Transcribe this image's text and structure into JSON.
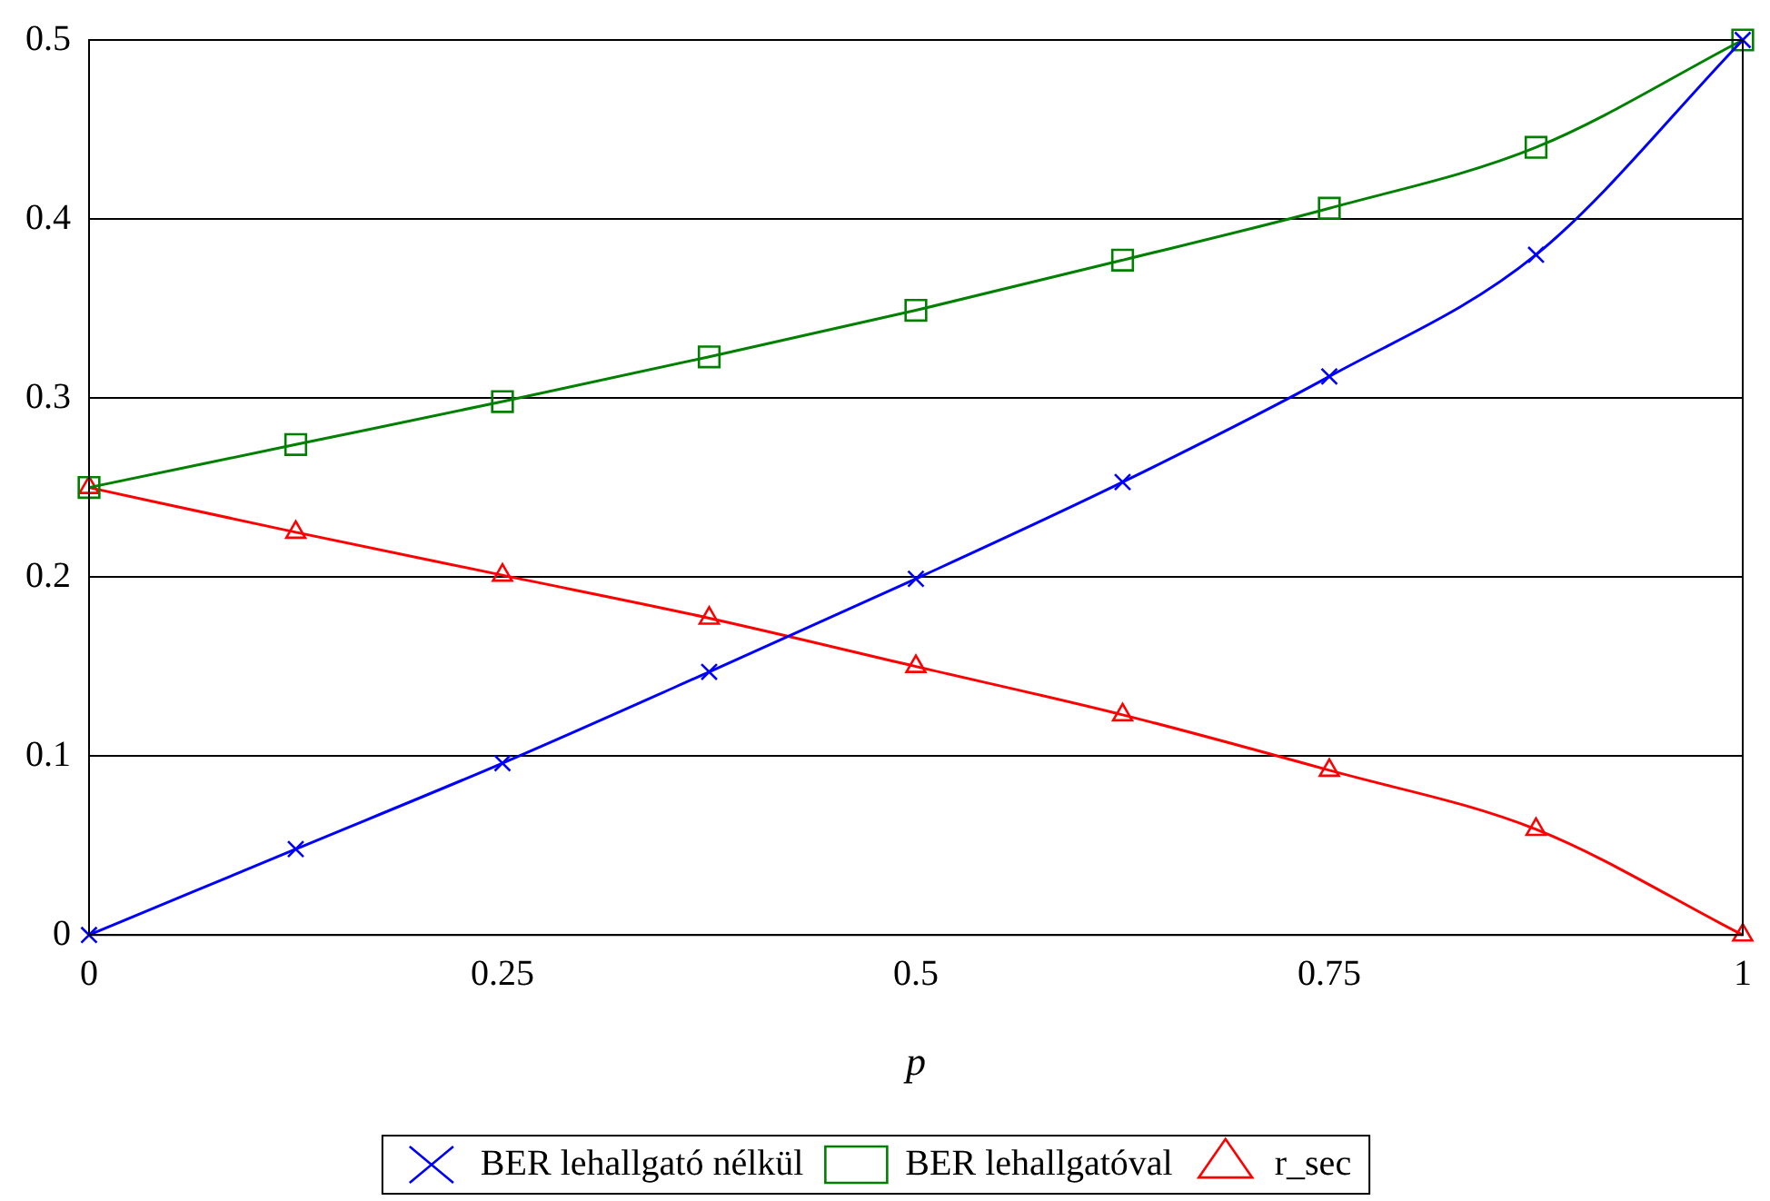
{
  "chart_data": {
    "type": "line",
    "xlabel": "p",
    "x": [
      0,
      0.125,
      0.25,
      0.375,
      0.5,
      0.625,
      0.75,
      0.875,
      1
    ],
    "series": [
      {
        "name": "BER lehallgató nélkül",
        "color": "#0000ff",
        "marker": "cross",
        "values": [
          0,
          0.048,
          0.096,
          0.147,
          0.199,
          0.253,
          0.312,
          0.38,
          0.5
        ]
      },
      {
        "name": "BER lehallgatóval",
        "color": "#008000",
        "marker": "square",
        "values": [
          0.25,
          0.274,
          0.298,
          0.323,
          0.349,
          0.377,
          0.406,
          0.44,
          0.5
        ]
      },
      {
        "name": "r_sec",
        "color": "#ff0000",
        "marker": "triangle",
        "values": [
          0.25,
          0.225,
          0.201,
          0.177,
          0.15,
          0.123,
          0.092,
          0.059,
          0
        ]
      }
    ],
    "xlim": [
      0,
      1
    ],
    "xticks": [
      0,
      0.25,
      0.5,
      0.75,
      1
    ],
    "ylim": [
      0,
      0.5
    ],
    "yticks": [
      0,
      0.1,
      0.2,
      0.3,
      0.4,
      0.5
    ],
    "grid": "y",
    "legend": "bottom",
    "line_style": "solid"
  }
}
